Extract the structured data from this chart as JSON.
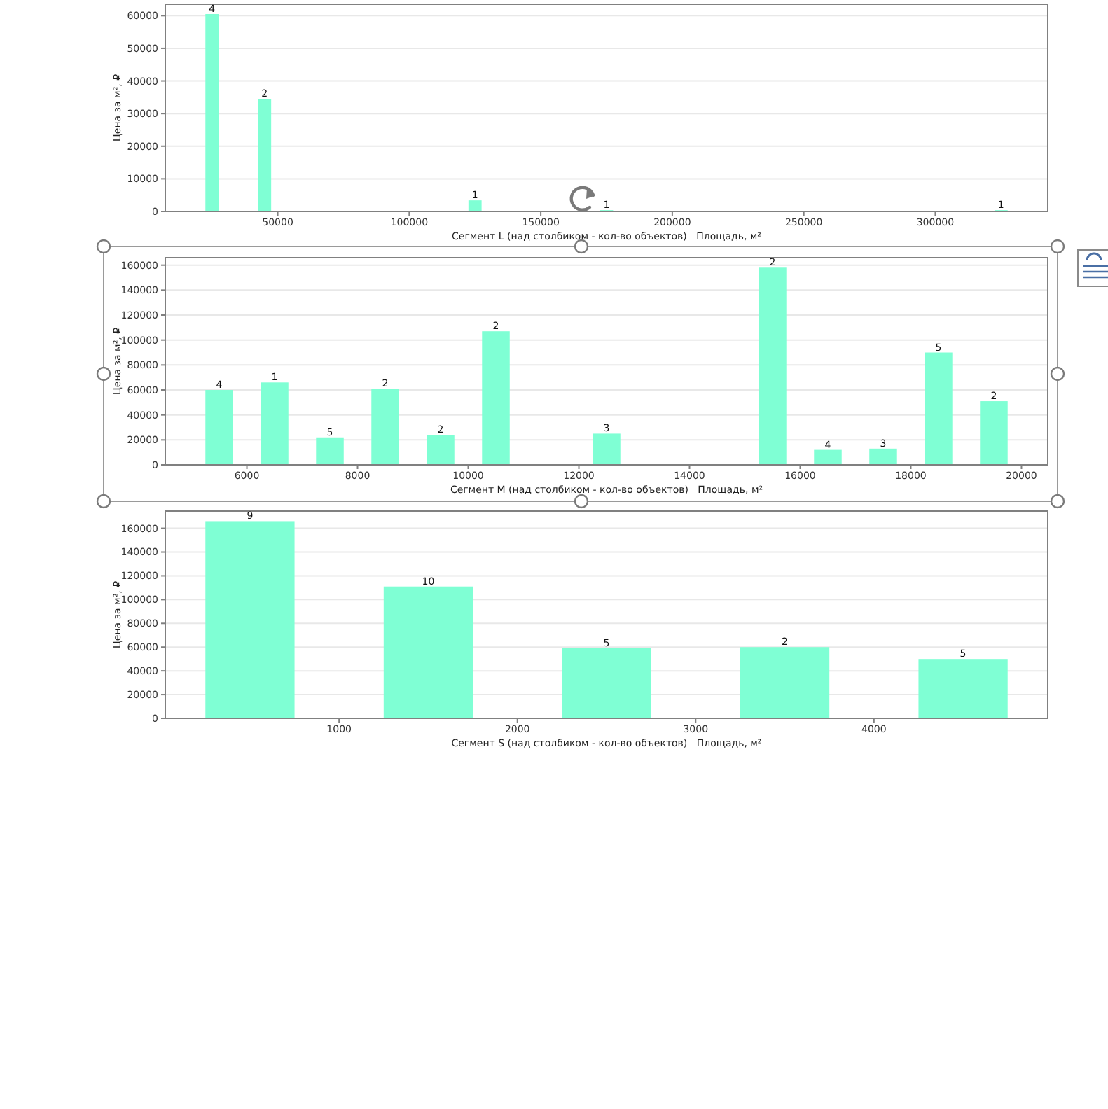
{
  "chart_data": [
    {
      "type": "bar",
      "x": [
        25000,
        45000,
        125000,
        175000,
        325000
      ],
      "values": [
        60500,
        34500,
        3400,
        400,
        400
      ],
      "color": "#7fffd4",
      "xlabel": "Сегмент L (над столбиком - кол-во объектов)   Площадь, м²",
      "ylabel": "Цена за м², ₽",
      "xlim": [
        7250,
        342750
      ],
      "xticks": [
        50000,
        100000,
        150000,
        200000,
        250000,
        300000
      ],
      "ylim": [
        0,
        63500
      ],
      "yticks": [
        0,
        10000,
        20000,
        30000,
        40000,
        50000,
        60000
      ],
      "grid": "y",
      "annotations": [
        {
          "text": "4",
          "x": 25000,
          "y": 60500
        },
        {
          "text": "2",
          "x": 45000,
          "y": 34500
        },
        {
          "text": "1",
          "x": 125000,
          "y": 3400
        },
        {
          "text": "1",
          "x": 175000,
          "y": 400
        },
        {
          "text": "1",
          "x": 325000,
          "y": 400
        }
      ]
    },
    {
      "type": "bar",
      "x": [
        5500,
        6500,
        7500,
        8500,
        9500,
        10500,
        12500,
        15500,
        16500,
        17500,
        18500,
        19500
      ],
      "values": [
        60000,
        66000,
        22000,
        61000,
        24000,
        107000,
        25000,
        158000,
        12000,
        13000,
        90000,
        51000
      ],
      "color": "#7fffd4",
      "xlabel": "Сегмент M (над столбиком - кол-во объектов)   Площадь, м²",
      "ylabel": "Цена за м², ₽",
      "xlim": [
        4525,
        20475
      ],
      "xticks": [
        6000,
        8000,
        10000,
        12000,
        14000,
        16000,
        18000,
        20000
      ],
      "ylim": [
        0,
        166000
      ],
      "yticks": [
        0,
        20000,
        40000,
        60000,
        80000,
        100000,
        120000,
        140000,
        160000
      ],
      "grid": "y",
      "annotations": [
        {
          "text": "4",
          "x": 5500,
          "y": 60000
        },
        {
          "text": "1",
          "x": 6500,
          "y": 66000
        },
        {
          "text": "5",
          "x": 7500,
          "y": 22000
        },
        {
          "text": "2",
          "x": 8500,
          "y": 61000
        },
        {
          "text": "2",
          "x": 9500,
          "y": 24000
        },
        {
          "text": "2",
          "x": 10500,
          "y": 107000
        },
        {
          "text": "3",
          "x": 12500,
          "y": 25000
        },
        {
          "text": "2",
          "x": 15500,
          "y": 158000
        },
        {
          "text": "4",
          "x": 16500,
          "y": 12000
        },
        {
          "text": "3",
          "x": 17500,
          "y": 13000
        },
        {
          "text": "5",
          "x": 18500,
          "y": 90000
        },
        {
          "text": "2",
          "x": 19500,
          "y": 51000
        }
      ]
    },
    {
      "type": "bar",
      "x": [
        500,
        1500,
        2500,
        3500,
        4500
      ],
      "values": [
        166000,
        111000,
        59000,
        60000,
        50000
      ],
      "color": "#7fffd4",
      "xlabel": "Сегмент S (над столбиком - кол-во объектов)   Площадь, м²",
      "ylabel": "Цена за м², ₽",
      "xlim": [
        25,
        4975
      ],
      "xticks": [
        1000,
        2000,
        3000,
        4000
      ],
      "ylim": [
        0,
        174500
      ],
      "yticks": [
        0,
        20000,
        40000,
        60000,
        80000,
        100000,
        120000,
        140000,
        160000
      ],
      "grid": "y",
      "annotations": [
        {
          "text": "9",
          "x": 500,
          "y": 166000
        },
        {
          "text": "10",
          "x": 1500,
          "y": 111000
        },
        {
          "text": "5",
          "x": 2500,
          "y": 59000
        },
        {
          "text": "2",
          "x": 3500,
          "y": 60000
        },
        {
          "text": "5",
          "x": 4500,
          "y": 50000
        }
      ]
    }
  ]
}
